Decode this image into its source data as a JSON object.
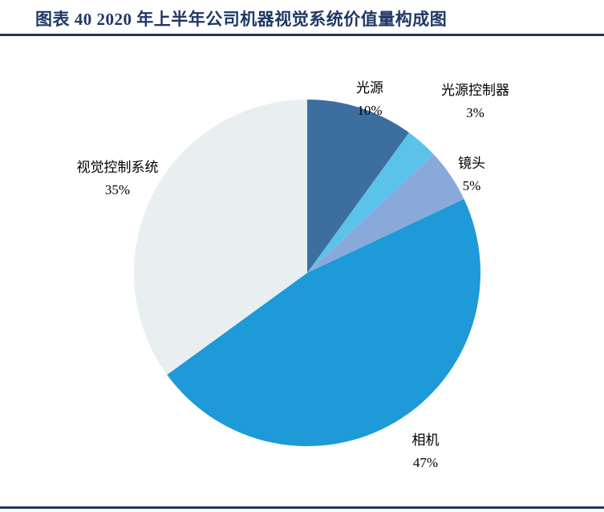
{
  "title": "图表 40 2020 年上半年公司机器视觉系统价值量构成图",
  "colors": {
    "title": "#1F3864",
    "divider": "#1F3864",
    "label_text": "#000000",
    "background": "#FFFFFF"
  },
  "chart_data": {
    "type": "pie",
    "title": "图表 40 2020 年上半年公司机器视觉系统价值量构成图",
    "labels": [
      "光源",
      "光源控制器",
      "镜头",
      "相机",
      "视觉控制系统"
    ],
    "values": [
      10,
      3,
      5,
      47,
      35
    ],
    "unit": "%",
    "percent_labels": [
      "10%",
      "3%",
      "5%",
      "47%",
      "35%"
    ],
    "slice_colors": [
      "#3C6E9F",
      "#5BC2EA",
      "#8AA9DB",
      "#1D9AD7",
      "#E9EEF1"
    ],
    "start_angle_deg": 0,
    "direction": "clockwise",
    "legend_position": "none",
    "label_placement": "outside slices, name above percent"
  }
}
